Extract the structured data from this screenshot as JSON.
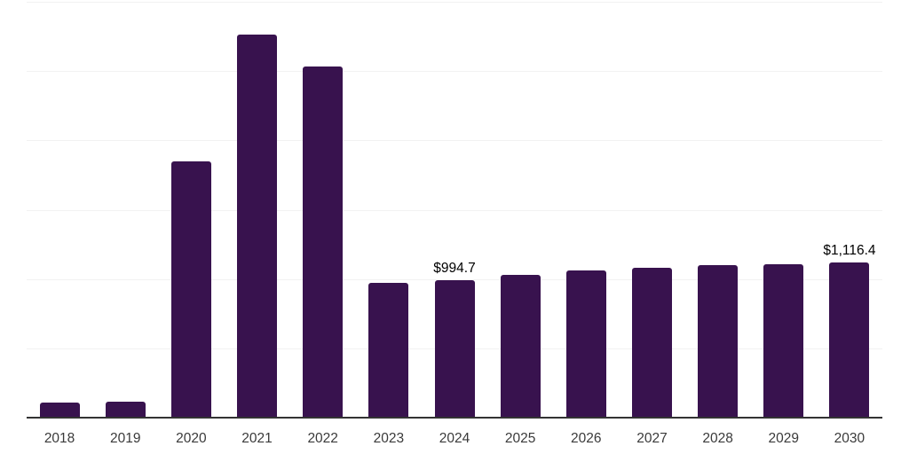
{
  "chart_data": {
    "type": "bar",
    "title": "",
    "xlabel": "",
    "ylabel": "",
    "categories": [
      "2018",
      "2019",
      "2020",
      "2021",
      "2022",
      "2023",
      "2024",
      "2025",
      "2026",
      "2027",
      "2028",
      "2029",
      "2030"
    ],
    "values": [
      110,
      115,
      1850,
      2765,
      2535,
      970,
      994.7,
      1030,
      1060,
      1082,
      1100,
      1109,
      1116.4
    ],
    "data_labels": [
      {
        "category": "2024",
        "text": "$994.7"
      },
      {
        "category": "2030",
        "text": "$1,116.4"
      }
    ],
    "ylim": [
      0,
      3000
    ],
    "gridline_step": 500,
    "grid": "horizontal",
    "legend_position": "none",
    "bar_color": "#38124E",
    "gridline_color": "#f2f2f2",
    "axis_line_color": "#333333",
    "tick_label_color": "#3a3a3a",
    "data_label_color": "#000000",
    "background_color": "#ffffff"
  }
}
